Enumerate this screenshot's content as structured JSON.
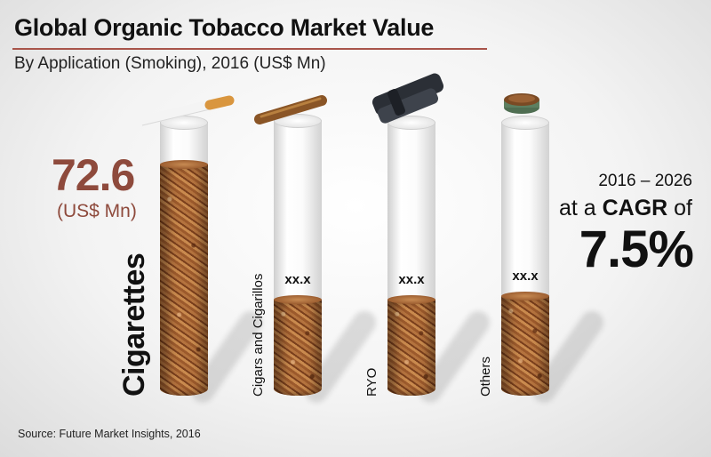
{
  "title": "Global Organic Tobacco Market Value",
  "subtitle": "By Application (Smoking), 2016 (US$ Mn)",
  "source": "Source: Future Market Insights, 2016",
  "highlight": {
    "value": "72.6",
    "unit": "(US$ Mn)"
  },
  "cagr": {
    "period": "2016 – 2026",
    "prefix": "at a ",
    "label": "CAGR",
    "suffix": " of",
    "value": "7.5%"
  },
  "colors": {
    "accent": "#8e4a3c",
    "rule": "#a8544a",
    "text": "#111111"
  },
  "chart_data": {
    "type": "bar",
    "title": "Global Organic Tobacco Market Value",
    "subtitle": "By Application (Smoking), 2016 (US$ Mn)",
    "categories": [
      "Cigarettes",
      "Cigars and Cigarillos",
      "RYO",
      "Others"
    ],
    "series": [
      {
        "values": [
          72.6,
          null,
          null,
          null
        ],
        "value_labels": [
          "72.6",
          "xx.x",
          "xx.x",
          "xx.x"
        ]
      }
    ],
    "ylim": [
      0,
      80
    ],
    "grid": false,
    "legend": "none"
  }
}
